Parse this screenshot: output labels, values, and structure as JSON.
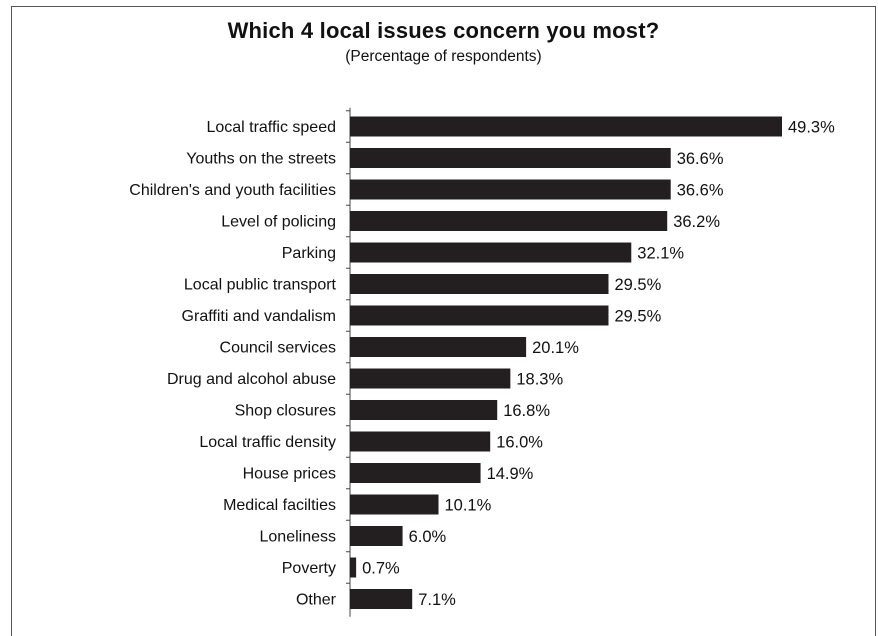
{
  "chart_data": {
    "type": "bar",
    "orientation": "horizontal",
    "title": "Which 4 local issues concern you most?",
    "subtitle": "(Percentage of respondents)",
    "categories": [
      "Local traffic speed",
      "Youths on the streets",
      "Children's and youth facilities",
      "Level of policing",
      "Parking",
      "Local public transport",
      "Graffiti and vandalism",
      "Council services",
      "Drug and alcohol abuse",
      "Shop closures",
      "Local traffic density",
      "House prices",
      "Medical facilties",
      "Loneliness",
      "Poverty",
      "Other"
    ],
    "values": [
      49.3,
      36.6,
      36.6,
      36.2,
      32.1,
      29.5,
      29.5,
      20.1,
      18.3,
      16.8,
      16.0,
      14.9,
      10.1,
      6.0,
      0.7,
      7.1
    ],
    "value_labels": [
      "49.3%",
      "36.6%",
      "36.6%",
      "36.2%",
      "32.1%",
      "29.5%",
      "29.5%",
      "20.1%",
      "18.3%",
      "16.8%",
      "16.0%",
      "14.9%",
      "10.1%",
      "6.0%",
      "0.7%",
      "7.1%"
    ],
    "xlim": [
      0,
      49.3
    ],
    "bar_color": "#231f20",
    "grid": false
  }
}
